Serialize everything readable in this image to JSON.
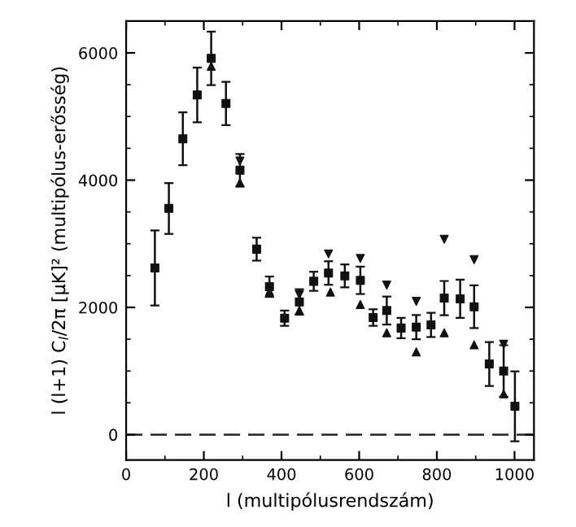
{
  "chart_data": {
    "type": "scatter",
    "xlabel": "l (multipólusrendszám)",
    "ylabel": "l (l+1) C$_{l}$/2π [μK]² (multipólus-erősség)",
    "xlim": [
      0,
      1050
    ],
    "ylim": [
      -400,
      6500
    ],
    "xticks": [
      0,
      200,
      400,
      600,
      800,
      1000
    ],
    "yticks": [
      0,
      2000,
      4000,
      6000
    ],
    "grid": false,
    "legend": false,
    "series": [
      {
        "color": "#111111",
        "marker": "square",
        "x": [
          74,
          110,
          146,
          183,
          219,
          257,
          293,
          336,
          369,
          408,
          446,
          483,
          521,
          563,
          603,
          636,
          671,
          708,
          747,
          785,
          819,
          860,
          896,
          935,
          972,
          1001
        ],
        "values": [
          2620,
          3555,
          4650,
          5340,
          5915,
          5205,
          4155,
          2915,
          2325,
          1830,
          2085,
          2410,
          2540,
          2495,
          2425,
          1840,
          1950,
          1675,
          1690,
          1725,
          2145,
          2135,
          2010,
          1110,
          1000,
          445
        ],
        "errors": [
          590,
          400,
          415,
          430,
          420,
          340,
          255,
          180,
          160,
          120,
          200,
          150,
          185,
          180,
          215,
          130,
          220,
          160,
          190,
          190,
          270,
          300,
          335,
          345,
          405,
          550
        ]
      },
      {
        "color": "#111111",
        "marker": "triangle",
        "x": [
          219,
          293,
          369,
          446,
          526,
          603,
          671,
          747,
          819,
          896,
          972
        ],
        "values": [
          5790,
          3960,
          2250,
          1950,
          2240,
          2045,
          1600,
          1300,
          1600,
          1410,
          640
        ]
      },
      {
        "color": "#111111",
        "marker": "triangle_down",
        "x": [
          293,
          446,
          521,
          603,
          671,
          747,
          819,
          896,
          972
        ],
        "values": [
          4300,
          2200,
          2840,
          2770,
          2350,
          2095,
          3070,
          2750,
          1420
        ]
      }
    ],
    "ref_lines": [
      {
        "axis": "y",
        "value": 0,
        "color": "#222222",
        "line_style": "dashed"
      }
    ]
  }
}
